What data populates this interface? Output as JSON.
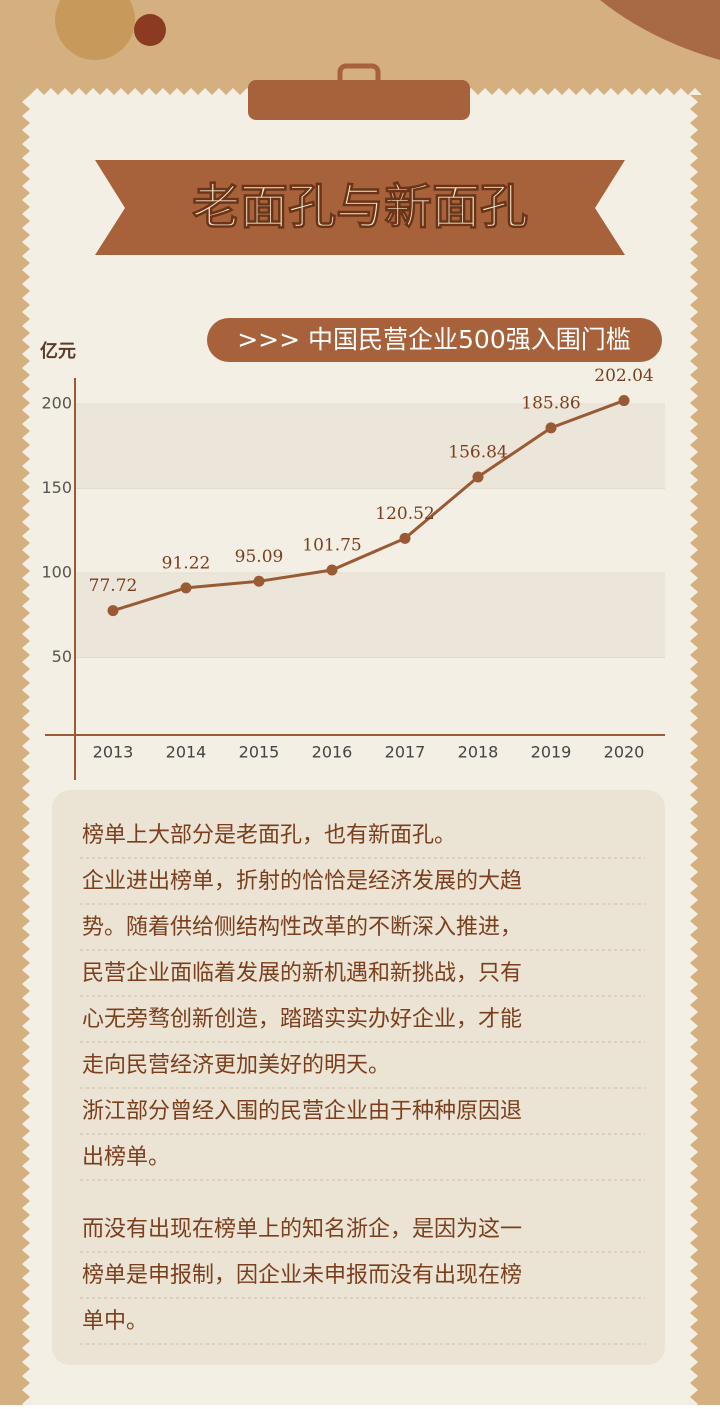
{
  "header": {
    "title": "老面孔与新面孔"
  },
  "chart_data": {
    "type": "line",
    "title": ">>> 中国民营企业500强入围门槛",
    "y_label": "亿元",
    "categories": [
      "2013",
      "2014",
      "2015",
      "2016",
      "2017",
      "2018",
      "2019",
      "2020"
    ],
    "series": [
      {
        "name": "入围门槛",
        "color": "#9a5a34",
        "values": [
          77.72,
          91.22,
          95.09,
          101.75,
          120.52,
          156.84,
          185.86,
          202.04
        ]
      }
    ],
    "ylim": [
      0,
      220
    ],
    "yticks": [
      50,
      100,
      150,
      200
    ]
  },
  "text": {
    "paragraphs": [
      {
        "lines": [
          "榜单上大部分是老面孔，也有新面孔。",
          "企业进出榜单，折射的恰恰是经济发展的大趋",
          "势。随着供给侧结构性改革的不断深入推进，",
          "民营企业面临着发展的新机遇和新挑战，只有",
          "心无旁骛创新创造，踏踏实实办好企业，才能",
          "走向民营经济更加美好的明天。",
          "浙江部分曾经入围的民营企业由于种种原因退",
          "出榜单。"
        ]
      },
      {
        "lines": [
          "而没有出现在榜单上的知名浙企，是因为这一",
          "榜单是申报制，因企业未申报而没有出现在榜",
          "单中。"
        ]
      }
    ]
  }
}
